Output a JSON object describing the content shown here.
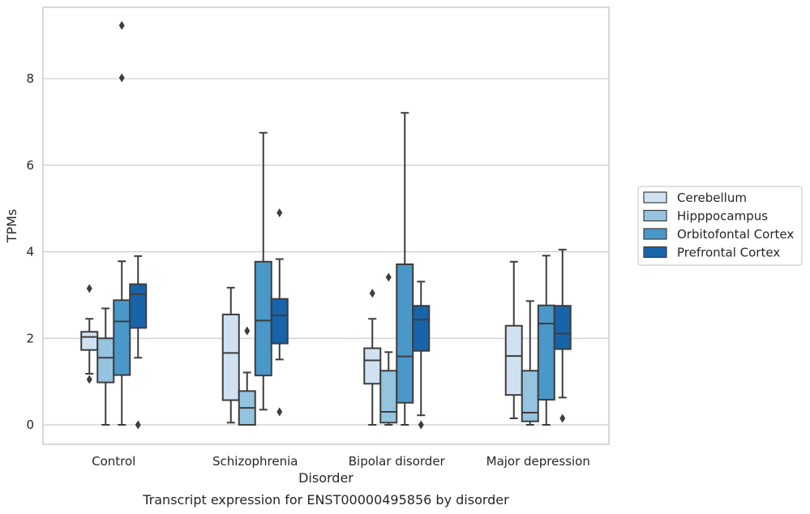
{
  "chart_data": {
    "type": "boxplot",
    "title": "",
    "xlabel": "Disorder",
    "ylabel": "TPMs",
    "caption": "Transcript expression for ENST00000495856 by disorder",
    "ylim": [
      -0.45,
      9.65
    ],
    "yticks": [
      0,
      2,
      4,
      6,
      8
    ],
    "grid": "horizontal",
    "legend_position": "right",
    "categories": [
      "Control",
      "Schizophrenia",
      "Bipolar disorder",
      "Major depression"
    ],
    "series": [
      {
        "name": "Cerebellum",
        "color": "#d0e1f2",
        "boxes": [
          {
            "whisker_low": 1.18,
            "q1": 1.73,
            "median": 2.03,
            "q3": 2.15,
            "whisker_high": 2.45,
            "outliers": [
              3.15,
              1.05
            ]
          },
          {
            "whisker_low": 0.05,
            "q1": 0.57,
            "median": 1.66,
            "q3": 2.55,
            "whisker_high": 3.17,
            "outliers": []
          },
          {
            "whisker_low": 0.0,
            "q1": 0.95,
            "median": 1.49,
            "q3": 1.77,
            "whisker_high": 2.45,
            "outliers": [
              3.04
            ]
          },
          {
            "whisker_low": 0.15,
            "q1": 0.69,
            "median": 1.59,
            "q3": 2.29,
            "whisker_high": 3.77,
            "outliers": []
          }
        ]
      },
      {
        "name": "Hipppocampus",
        "color": "#94c4df",
        "boxes": [
          {
            "whisker_low": 0.0,
            "q1": 0.98,
            "median": 1.55,
            "q3": 2.0,
            "whisker_high": 2.69,
            "outliers": []
          },
          {
            "whisker_low": 0.0,
            "q1": 0.0,
            "median": 0.39,
            "q3": 0.78,
            "whisker_high": 1.21,
            "outliers": [
              2.17
            ]
          },
          {
            "whisker_low": 0.0,
            "q1": 0.05,
            "median": 0.3,
            "q3": 1.25,
            "whisker_high": 1.68,
            "outliers": [
              3.41
            ]
          },
          {
            "whisker_low": 0.0,
            "q1": 0.08,
            "median": 0.28,
            "q3": 1.25,
            "whisker_high": 2.86,
            "outliers": []
          }
        ]
      },
      {
        "name": "Orbitofontal Cortex",
        "color": "#4a98c9",
        "boxes": [
          {
            "whisker_low": 0.0,
            "q1": 1.15,
            "median": 2.39,
            "q3": 2.88,
            "whisker_high": 3.78,
            "outliers": [
              8.02,
              9.23
            ]
          },
          {
            "whisker_low": 0.35,
            "q1": 1.14,
            "median": 2.41,
            "q3": 3.77,
            "whisker_high": 6.75,
            "outliers": []
          },
          {
            "whisker_low": 0.0,
            "q1": 0.51,
            "median": 1.58,
            "q3": 3.71,
            "whisker_high": 7.21,
            "outliers": []
          },
          {
            "whisker_low": 0.0,
            "q1": 0.58,
            "median": 2.34,
            "q3": 2.76,
            "whisker_high": 3.91,
            "outliers": []
          }
        ]
      },
      {
        "name": "Prefrontal Cortex",
        "color": "#1764ab",
        "boxes": [
          {
            "whisker_low": 1.55,
            "q1": 2.24,
            "median": 3.02,
            "q3": 3.25,
            "whisker_high": 3.9,
            "outliers": [
              0.0
            ]
          },
          {
            "whisker_low": 1.51,
            "q1": 1.88,
            "median": 2.53,
            "q3": 2.91,
            "whisker_high": 3.83,
            "outliers": [
              0.3,
              4.9
            ]
          },
          {
            "whisker_low": 0.22,
            "q1": 1.71,
            "median": 2.43,
            "q3": 2.75,
            "whisker_high": 3.31,
            "outliers": [
              0.0
            ]
          },
          {
            "whisker_low": 0.63,
            "q1": 1.75,
            "median": 2.11,
            "q3": 2.75,
            "whisker_high": 4.05,
            "outliers": [
              0.15
            ]
          }
        ]
      }
    ]
  }
}
